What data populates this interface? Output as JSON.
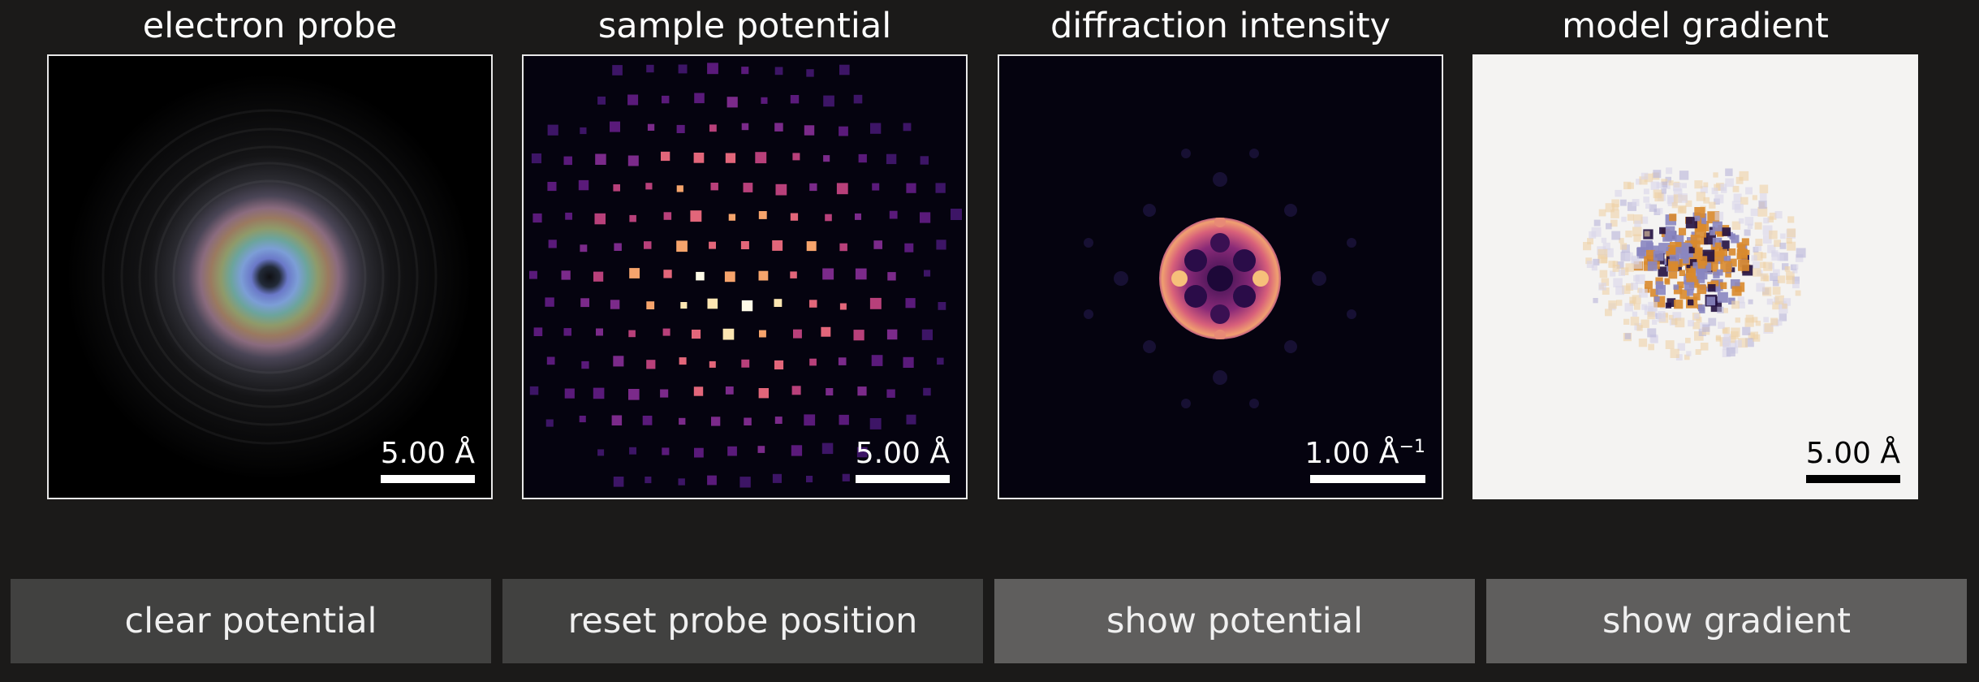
{
  "panels": [
    {
      "title": "electron probe",
      "scale_label": "5.00 Å",
      "scale_color": "#ffffff",
      "background": "#000000"
    },
    {
      "title": "sample potential",
      "scale_label": "5.00 Å",
      "scale_color": "#ffffff",
      "background": "#05030f"
    },
    {
      "title": "diffraction intensity",
      "scale_label": "1.00 Å",
      "scale_label_sup": "−1",
      "scale_color": "#ffffff",
      "background": "#05030f"
    },
    {
      "title": "model gradient",
      "scale_label": "5.00 Å",
      "scale_color": "#000000",
      "background": "#f4f3f2"
    }
  ],
  "buttons": {
    "clear_potential": "clear potential",
    "reset_probe_position": "reset probe position",
    "show_potential": "show potential",
    "show_gradient": "show gradient"
  },
  "colors": {
    "app_background": "#1b1a19",
    "button_dark": "#414140",
    "button_light": "#5f5e5d",
    "frame_border": "#e8e8e8"
  }
}
